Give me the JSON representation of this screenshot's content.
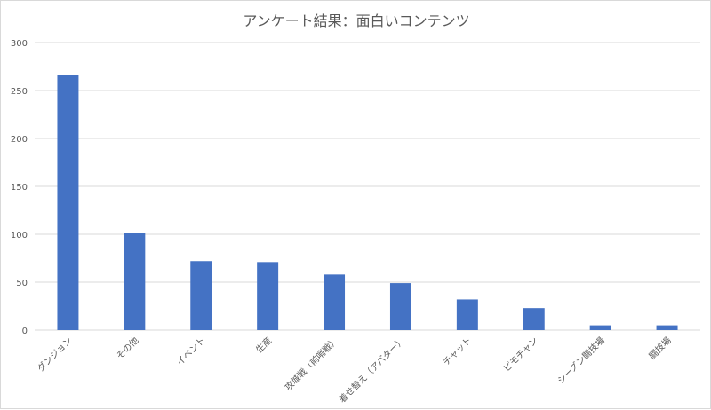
{
  "chart_data": {
    "type": "bar",
    "title": "アンケート結果：面白いコンテンツ",
    "xlabel": "",
    "ylabel": "",
    "categories": [
      "ダンジョン",
      "その他",
      "イベント",
      "生産",
      "攻城戦（前哨戦）",
      "着せ替え（アバター）",
      "チャット",
      "ピモチャン",
      "シーズン闘技場",
      "闘技場"
    ],
    "values": [
      266,
      101,
      72,
      71,
      58,
      49,
      32,
      23,
      5,
      5
    ],
    "ylim": [
      0,
      300
    ],
    "yticks": [
      0,
      50,
      100,
      150,
      200,
      250,
      300
    ],
    "grid": true,
    "legend": "none",
    "colors": {
      "bar": "#4472c4",
      "grid": "#d9d9d9",
      "text": "#595959"
    }
  }
}
